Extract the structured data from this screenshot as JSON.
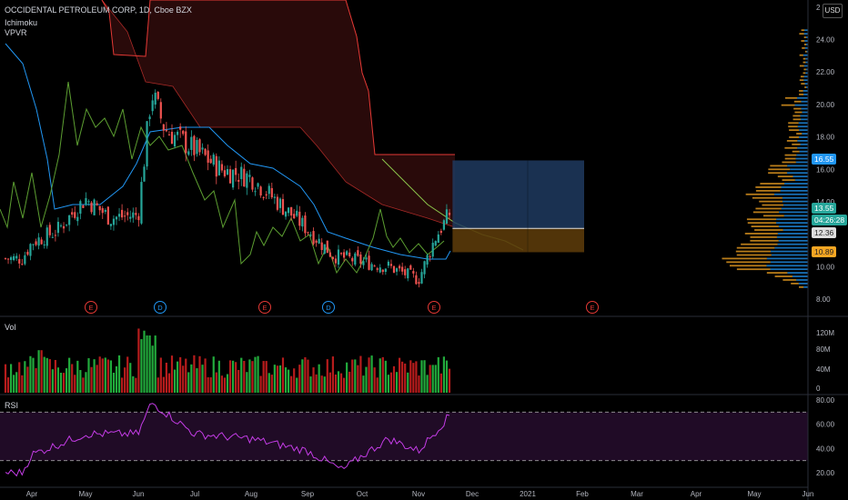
{
  "header": {
    "symbol_line": "OCCIDENTAL PETROLEUM CORP, 1D, Cboe BZX",
    "indicators": [
      "Ichimoku",
      "VPVR"
    ],
    "currency": "USD"
  },
  "panes": {
    "volume_label": "Vol",
    "rsi_label": "RSI"
  },
  "price_tags": {
    "last": "16.55",
    "current": "13.55",
    "countdown": "04:26:28",
    "level_a": "12.36",
    "level_b": "10.89"
  },
  "colors": {
    "up": "#26a69a",
    "up_vol": "#22ab3c",
    "down": "#ef5350",
    "down_vol": "#b71c1c",
    "base_line": "#2196f3",
    "lagging_span": "#5c9e31",
    "cloud_red": "#e53935",
    "cloud_green": "#8bc34a",
    "rsi_line": "#c43ce6",
    "vpvr_up": "#2196f3",
    "vpvr_down": "#f5a623",
    "long_target": "#1e3a5f",
    "long_stop": "#5a3a0a"
  },
  "chart_data": [
    {
      "type": "candlestick",
      "title": "OCCIDENTAL PETROLEUM CORP, 1D, Cboe BZX",
      "y_axis": {
        "ticks": [
          "24.00",
          "22.00",
          "20.00",
          "18.00",
          "16.00",
          "14.00",
          "12.00",
          "10.00",
          "8.00"
        ],
        "range": [
          7,
          26.4
        ]
      },
      "x_axis": {
        "ticks": [
          "Apr",
          "May",
          "Jun",
          "Jul",
          "Aug",
          "Sep",
          "Oct",
          "Nov",
          "Dec",
          "2021",
          "Feb",
          "Mar",
          "Apr",
          "May",
          "Jun"
        ]
      },
      "events": [
        {
          "label": "E",
          "month": "Apr"
        },
        {
          "label": "D",
          "month": "Jun"
        },
        {
          "label": "E",
          "month": "Aug"
        },
        {
          "label": "D",
          "month": "Sep"
        },
        {
          "label": "E",
          "month": "Nov"
        },
        {
          "label": "E",
          "month": "Feb"
        }
      ],
      "trade_box": {
        "entry": 12.36,
        "target": 16.55,
        "stop": 10.89,
        "start": "Nov 20",
        "end": "Feb"
      },
      "close_series_key_points": [
        {
          "date": "Mar 20",
          "close": 10.5
        },
        {
          "date": "Apr 1",
          "close": 11.5
        },
        {
          "date": "Apr 15",
          "close": 12.2
        },
        {
          "date": "May 1",
          "close": 14.2
        },
        {
          "date": "May 15",
          "close": 13.0
        },
        {
          "date": "Jun 1",
          "close": 13.2
        },
        {
          "date": "Jun 8",
          "close": 20.8
        },
        {
          "date": "Jun 15",
          "close": 18.5
        },
        {
          "date": "Jul 1",
          "close": 17.2
        },
        {
          "date": "Jul 15",
          "close": 16.0
        },
        {
          "date": "Aug 1",
          "close": 15.5
        },
        {
          "date": "Aug 15",
          "close": 14.0
        },
        {
          "date": "Sep 1",
          "close": 12.3
        },
        {
          "date": "Sep 15",
          "close": 10.7
        },
        {
          "date": "Oct 1",
          "close": 10.3
        },
        {
          "date": "Oct 15",
          "close": 10.0
        },
        {
          "date": "Nov 1",
          "close": 9.2
        },
        {
          "date": "Nov 10",
          "close": 11.7
        },
        {
          "date": "Nov 20",
          "close": 13.6
        }
      ]
    },
    {
      "type": "bar",
      "title": "Vol",
      "y_axis": {
        "ticks": [
          "120M",
          "80M",
          "40M",
          "0"
        ]
      }
    },
    {
      "type": "line",
      "title": "RSI",
      "y_axis": {
        "ticks": [
          "80.00",
          "60.00",
          "40.00",
          "20.00"
        ],
        "range": [
          14,
          86
        ]
      },
      "bands": {
        "upper": 70,
        "lower": 30
      },
      "key_points": [
        {
          "date": "Mar 20",
          "value": 20
        },
        {
          "date": "Apr 1",
          "value": 35
        },
        {
          "date": "May 1",
          "value": 52
        },
        {
          "date": "Jun 1",
          "value": 52
        },
        {
          "date": "Jun 8",
          "value": 78
        },
        {
          "date": "Jul 1",
          "value": 52
        },
        {
          "date": "Aug 1",
          "value": 48
        },
        {
          "date": "Sep 1",
          "value": 38
        },
        {
          "date": "Sep 20",
          "value": 22
        },
        {
          "date": "Oct 1",
          "value": 34
        },
        {
          "date": "Oct 15",
          "value": 48
        },
        {
          "date": "Nov 1",
          "value": 38
        },
        {
          "date": "Nov 20",
          "value": 70
        }
      ]
    }
  ]
}
